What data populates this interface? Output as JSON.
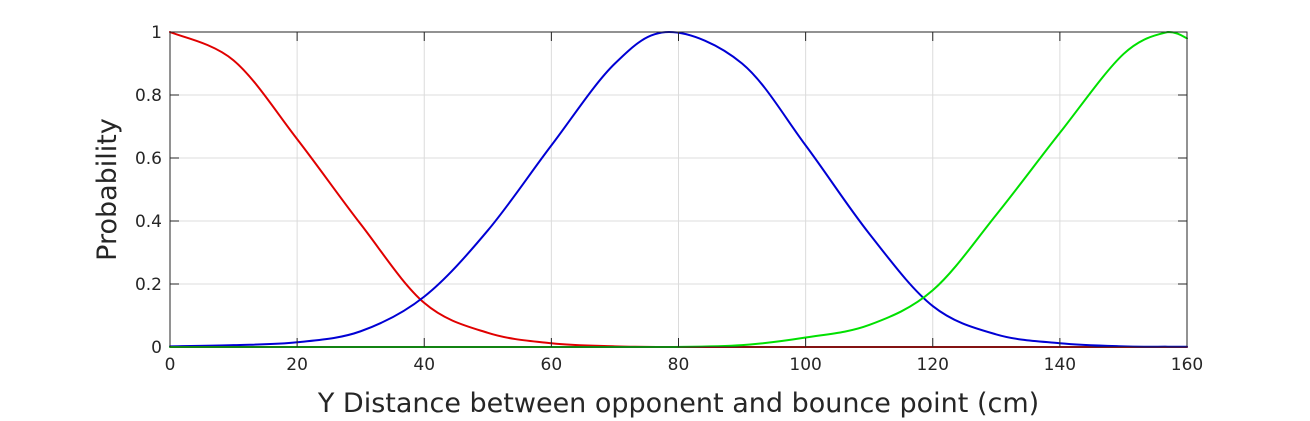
{
  "chart_data": {
    "type": "line",
    "title": "",
    "xlabel": "Y Distance between opponent and bounce point (cm)",
    "ylabel": "Probability",
    "xlim": [
      0,
      160
    ],
    "ylim": [
      0,
      1
    ],
    "xticks": [
      "0",
      "20",
      "40",
      "60",
      "80",
      "100",
      "120",
      "140",
      "160"
    ],
    "yticks": [
      "0",
      "0.2",
      "0.4",
      "0.6",
      "0.8",
      "1"
    ],
    "grid": true,
    "legend": "none",
    "x": [
      0,
      10,
      20,
      30,
      40,
      50,
      60,
      70,
      78.5,
      90,
      100,
      110,
      120,
      130,
      140,
      150,
      157,
      160
    ],
    "series": [
      {
        "color": "#e00000",
        "values": [
          1.0,
          0.91,
          0.66,
          0.39,
          0.14,
          0.045,
          0.012,
          0.002,
          0.0,
          0.0,
          0.0,
          0.0,
          0.0,
          0.0,
          0.0,
          0.0,
          0.0,
          0.0
        ]
      },
      {
        "color": "#0000d4",
        "values": [
          0.002,
          0.006,
          0.015,
          0.05,
          0.16,
          0.37,
          0.64,
          0.9,
          1.0,
          0.9,
          0.64,
          0.36,
          0.13,
          0.04,
          0.012,
          0.002,
          0.001,
          0.001
        ]
      },
      {
        "color": "#00e000",
        "values": [
          0.0,
          0.0,
          0.0,
          0.0,
          0.0,
          0.0,
          0.0,
          0.0,
          0.0,
          0.006,
          0.03,
          0.07,
          0.18,
          0.42,
          0.68,
          0.93,
          1.0,
          0.98
        ]
      }
    ]
  }
}
